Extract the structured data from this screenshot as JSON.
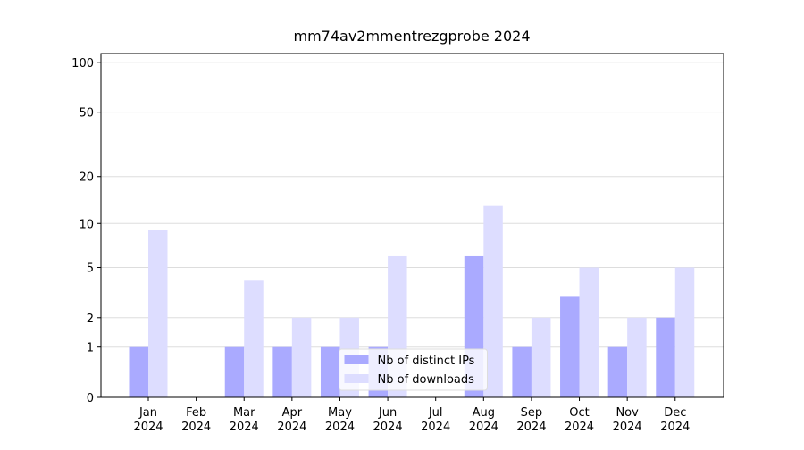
{
  "chart_data": {
    "type": "bar",
    "title": "mm74av2mmentrezgprobe 2024",
    "categories": [
      "Jan 2024",
      "Feb 2024",
      "Mar 2024",
      "Apr 2024",
      "May 2024",
      "Jun 2024",
      "Jul 2024",
      "Aug 2024",
      "Sep 2024",
      "Oct 2024",
      "Nov 2024",
      "Dec 2024"
    ],
    "series": [
      {
        "name": "Nb of distinct IPs",
        "color": "#aaaaff",
        "values": [
          1,
          0,
          1,
          1,
          1,
          1,
          0,
          6,
          1,
          3,
          1,
          2
        ]
      },
      {
        "name": "Nb of downloads",
        "color": "#ddddff",
        "values": [
          9,
          0,
          4,
          2,
          2,
          6,
          0,
          13,
          2,
          5,
          2,
          5
        ]
      }
    ],
    "yscale": "log1p",
    "ylim": [
      0,
      113.5
    ],
    "yticks": [
      0,
      1,
      2,
      5,
      10,
      20,
      50,
      100
    ],
    "grid": true,
    "legend": "lower center"
  }
}
